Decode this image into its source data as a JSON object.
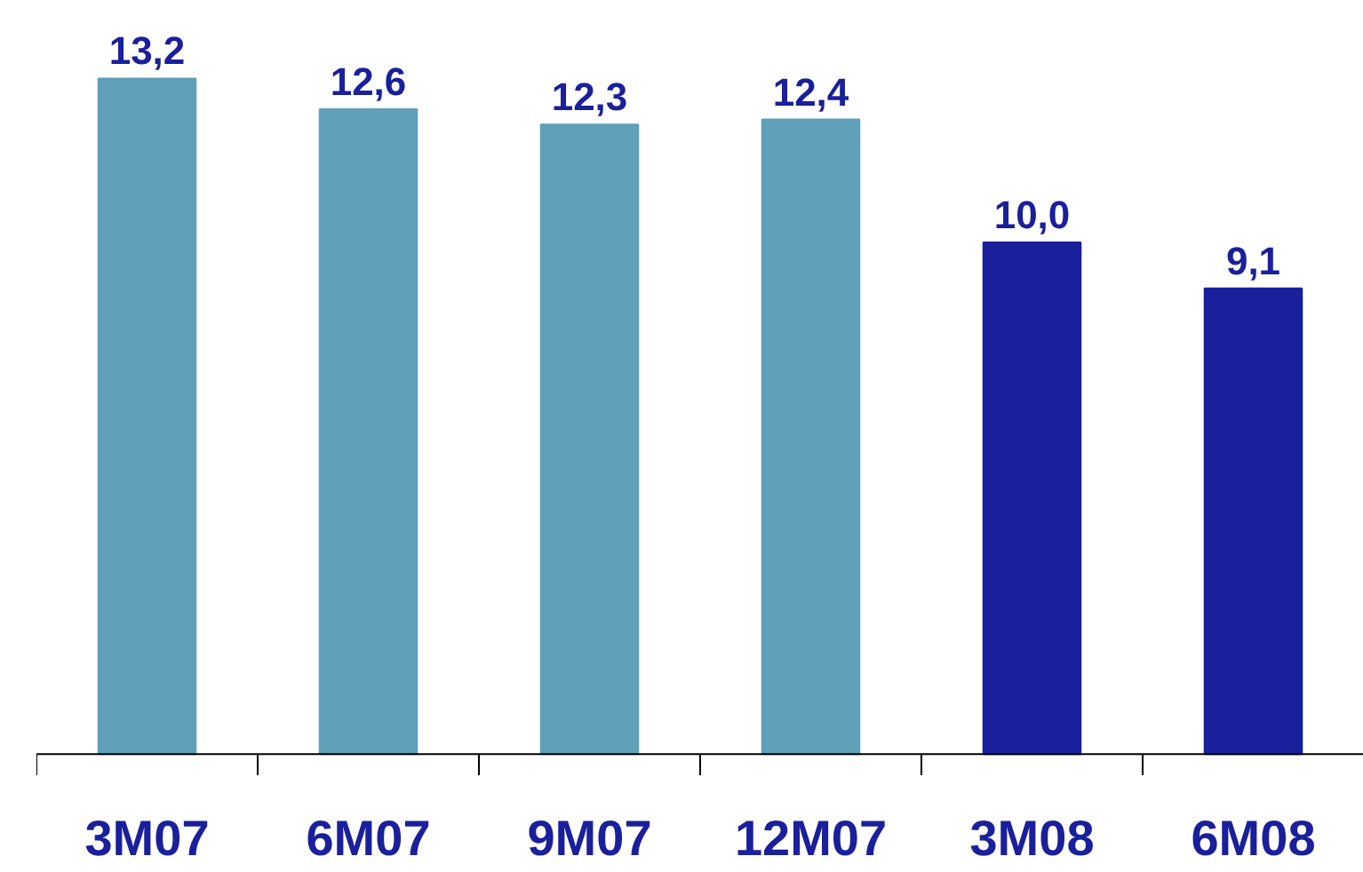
{
  "chart_data": {
    "type": "bar",
    "categories": [
      "3M07",
      "6M07",
      "9M07",
      "12M07",
      "3M08",
      "6M08"
    ],
    "values": [
      13.2,
      12.6,
      12.3,
      12.4,
      10.0,
      9.1
    ],
    "colors": [
      "#5f9fb7",
      "#5f9fb7",
      "#5f9fb7",
      "#5f9fb7",
      "#1a1f9c",
      "#1a1f9c"
    ],
    "value_labels": [
      "13,2",
      "12,6",
      "12,3",
      "12,4",
      "10,0",
      "9,1"
    ]
  }
}
